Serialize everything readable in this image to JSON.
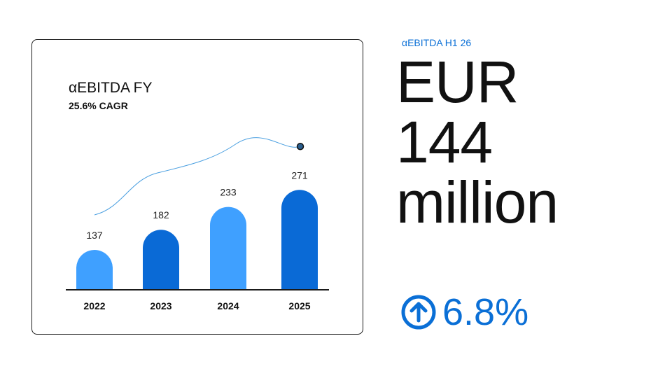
{
  "chart_data": {
    "type": "bar",
    "title": "αEBITDA FY",
    "subtitle": "25.6% CAGR",
    "categories": [
      "2022",
      "2023",
      "2024",
      "2025"
    ],
    "values": [
      137,
      182,
      233,
      271
    ],
    "data_labels": [
      "137",
      "182",
      "233",
      "271"
    ],
    "ylim": [
      0,
      300
    ],
    "grid": false,
    "legend": "none",
    "bar_colors": [
      "#3fa0ff",
      "#0a6ad6",
      "#3fa0ff",
      "#0a6ad6"
    ],
    "trend_line_color": "#4a9fe0"
  },
  "kpi": {
    "label": "αEBITDA H1 26",
    "value_lines": [
      "EUR",
      "144",
      "million"
    ],
    "growth": "6.8%",
    "growth_icon": "arrow-up-circle-icon",
    "accent_color": "#0a6fd6"
  }
}
